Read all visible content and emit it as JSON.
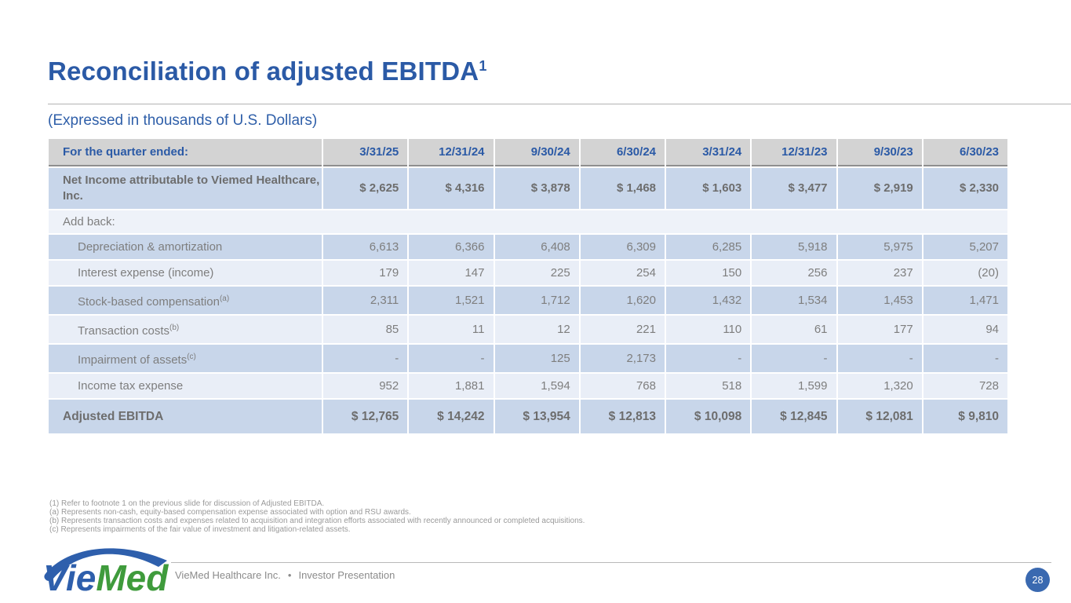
{
  "slide": {
    "title": "Reconciliation of adjusted EBITDA",
    "title_footnote_marker": "1",
    "subtitle": "(Expressed in thousands of U.S. Dollars)",
    "page_number": "28"
  },
  "table": {
    "header": {
      "label": "For the quarter ended:",
      "columns": [
        "3/31/25",
        "12/31/24",
        "9/30/24",
        "6/30/24",
        "3/31/24",
        "12/31/23",
        "9/30/23",
        "6/30/23"
      ]
    },
    "rows": [
      {
        "label": "Net Income attributable to Viemed Healthcare, Inc.",
        "style": "bold",
        "shade": "medium",
        "values": [
          "$ 2,625",
          "$ 4,316",
          "$ 3,878",
          "$ 1,468",
          "$ 1,603",
          "$ 3,477",
          "$ 2,919",
          "$ 2,330"
        ]
      },
      {
        "label": "Add back:",
        "style": "section",
        "shade": "section",
        "values": []
      },
      {
        "label": "Depreciation & amortization",
        "style": "indent",
        "shade": "medium",
        "values": [
          "6,613",
          "6,366",
          "6,408",
          "6,309",
          "6,285",
          "5,918",
          "5,975",
          "5,207"
        ]
      },
      {
        "label": "Interest expense (income)",
        "style": "indent",
        "shade": "light",
        "values": [
          "179",
          "147",
          "225",
          "254",
          "150",
          "256",
          "237",
          "(20)"
        ]
      },
      {
        "label": "Stock-based compensation",
        "sup": "(a)",
        "style": "indent",
        "shade": "medium",
        "values": [
          "2,311",
          "1,521",
          "1,712",
          "1,620",
          "1,432",
          "1,534",
          "1,453",
          "1,471"
        ]
      },
      {
        "label": "Transaction costs",
        "sup": "(b)",
        "style": "indent",
        "shade": "light",
        "values": [
          "85",
          "11",
          "12",
          "221",
          "110",
          "61",
          "177",
          "94"
        ]
      },
      {
        "label": "Impairment of assets",
        "sup": "(c)",
        "style": "indent",
        "shade": "medium",
        "values": [
          "-",
          "-",
          "125",
          "2,173",
          "-",
          "-",
          "-",
          "-"
        ]
      },
      {
        "label": "Income tax expense",
        "style": "indent",
        "shade": "light",
        "values": [
          "952",
          "1,881",
          "1,594",
          "768",
          "518",
          "1,599",
          "1,320",
          "728"
        ]
      },
      {
        "label": "Adjusted EBITDA",
        "style": "total",
        "shade": "medium",
        "values": [
          "$ 12,765",
          "$ 14,242",
          "$ 13,954",
          "$ 12,813",
          "$ 10,098",
          "$ 12,845",
          "$ 12,081",
          "$ 9,810"
        ]
      }
    ]
  },
  "footnotes": [
    "(1) Refer to footnote 1 on the previous slide for discussion of Adjusted EBITDA.",
    "(a) Represents non-cash, equity-based compensation expense associated with option and RSU awards.",
    "(b) Represents transaction costs and expenses related to acquisition and integration efforts associated with recently announced or completed acquisitions.",
    "(c) Represents impairments of the fair value of investment and litigation-related assets."
  ],
  "footer": {
    "logo_vie": "Vie",
    "logo_med": "Med",
    "company": "VieMed Healthcare Inc.",
    "bullet": "•",
    "presentation": "Investor Presentation"
  },
  "colors": {
    "brand_blue": "#2b5aa6",
    "logo_green": "#3f9b3c",
    "header_gray": "#d3d3d3",
    "row_medium_blue": "#c8d6ea",
    "row_light_blue": "#e9eef7",
    "badge_blue": "#3a69b0",
    "value_gray": "#7e7e7e"
  }
}
